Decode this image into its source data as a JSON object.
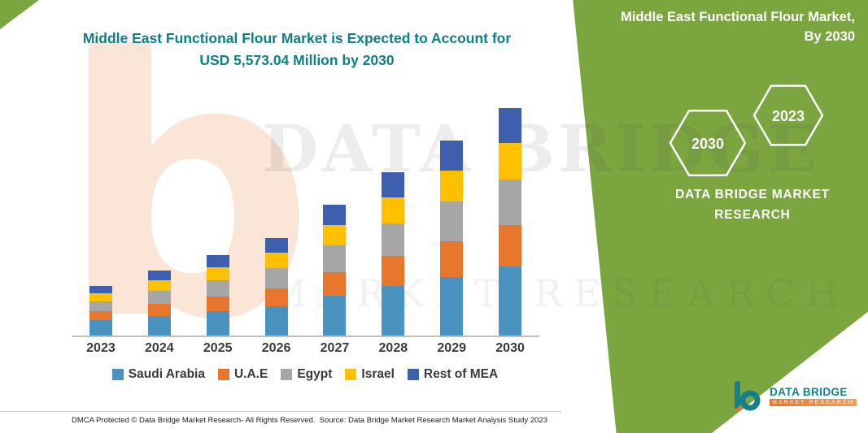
{
  "header": {
    "title_line1": "Middle East Functional Flour Market is Expected to Account for",
    "title_line2": "USD 5,573.04 Million by 2030"
  },
  "side_panel": {
    "title_line1": "Middle East Functional Flour Market,",
    "title_line2": "By 2030",
    "hexagon_years": [
      "2030",
      "2023"
    ],
    "brand_text": "DATA BRIDGE MARKET RESEARCH",
    "bg_color": "#7aa53f"
  },
  "watermark": {
    "line1": "DATA BRIDGE",
    "line2": "MARKET RESEARCH",
    "letter_b": "b"
  },
  "chart_data": {
    "type": "bar",
    "stacked": true,
    "title": "Middle East Functional Flour Market is Expected to Account for USD 5,573.04 Million by 2030",
    "unit": "USD Million",
    "categories": [
      "2023",
      "2024",
      "2025",
      "2026",
      "2027",
      "2028",
      "2029",
      "2030"
    ],
    "series": [
      {
        "name": "Saudi Arabia",
        "color": "#4a92c0",
        "values": [
          370,
          480,
          595,
          725,
          970,
          1210,
          1445,
          1690
        ]
      },
      {
        "name": "U.A.E",
        "color": "#e8762d",
        "values": [
          225,
          290,
          360,
          440,
          590,
          735,
          875,
          1020
        ]
      },
      {
        "name": "Egypt",
        "color": "#a6a6a6",
        "values": [
          245,
          320,
          395,
          485,
          645,
          805,
          960,
          1115
        ]
      },
      {
        "name": "Israel",
        "color": "#ffc000",
        "values": [
          195,
          255,
          315,
          385,
          515,
          640,
          765,
          890
        ]
      },
      {
        "name": "Rest of MEA",
        "color": "#3e5fae",
        "values": [
          185,
          240,
          300,
          365,
          490,
          610,
          730,
          858
        ]
      }
    ],
    "totals": [
      1220,
      1585,
      1965,
      2400,
      3210,
      4000,
      4775,
      5573
    ],
    "ylim": [
      0,
      5600
    ],
    "grid": false,
    "legend_position": "bottom"
  },
  "footer": {
    "dmca": "DMCA Protected © Data Bridge Market Research-  All Rights Reserved.",
    "source": "Source: Data Bridge Market Research  Market Analysis Study 2023"
  },
  "logo": {
    "name": "DATA BRIDGE",
    "subtitle": "MARKET RESEARCH"
  }
}
